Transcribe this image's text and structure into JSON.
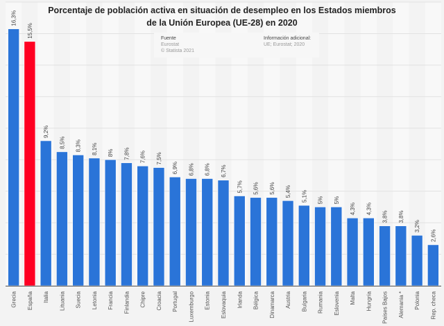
{
  "chart_data": {
    "type": "bar",
    "title": "Porcentaje de población activa en situación de desempleo en los Estados miembros de la Unión Europea (UE-28) en 2020",
    "title_lines": [
      "Porcentaje de población activa en situación de desempleo en los Estados miembros",
      "de la Unión Europea (UE-28) en 2020"
    ],
    "categories": [
      "Grecia",
      "España",
      "Italia",
      "Lituania",
      "Suecia",
      "Letonia",
      "Francia",
      "Finlandia",
      "Chipre",
      "Croacia",
      "Portugal",
      "Luxemburgo",
      "Estonia",
      "Eslovaquia",
      "Irlanda",
      "Bélgica",
      "Dinamarca",
      "Austria",
      "Bulgaria",
      "Rumania",
      "Eslovenia",
      "Malta",
      "Hungría",
      "Países Bajos",
      "Alemania *",
      "Polonia",
      "Rep. checa"
    ],
    "values": [
      16.3,
      15.5,
      9.2,
      8.5,
      8.3,
      8.1,
      8,
      7.8,
      7.6,
      7.5,
      6.9,
      6.8,
      6.8,
      6.7,
      5.7,
      5.6,
      5.6,
      5.4,
      5.1,
      5,
      5,
      4.3,
      4.3,
      3.8,
      3.8,
      3.2,
      2.6
    ],
    "data_labels": [
      "16,3%",
      "15,5%",
      "9,2%",
      "8,5%",
      "8,3%",
      "8,1%",
      "8%",
      "7,8%",
      "7,6%",
      "7,5%",
      "6,9%",
      "6,8%",
      "6,8%",
      "6,7%",
      "5,7%",
      "5,6%",
      "5,6%",
      "5,4%",
      "5,1%",
      "5%",
      "5%",
      "4,3%",
      "4,3%",
      "3,8%",
      "3,8%",
      "3,2%",
      "2,6%"
    ],
    "highlight_category": "España",
    "colors": {
      "bar": "#2a74d8",
      "highlight": "#ff0022",
      "grid": "#e2e2e2"
    },
    "ylim": [
      0,
      18
    ],
    "grid": true,
    "y_tick_labels_shown": false,
    "xlabel": "",
    "ylabel": ""
  },
  "source": {
    "heading": "Fuente",
    "lines": [
      "Eurostat",
      "© Statista 2021"
    ]
  },
  "additional_info": {
    "heading": "Información adicional:",
    "lines": [
      "UE; Eurostat; 2020"
    ]
  }
}
